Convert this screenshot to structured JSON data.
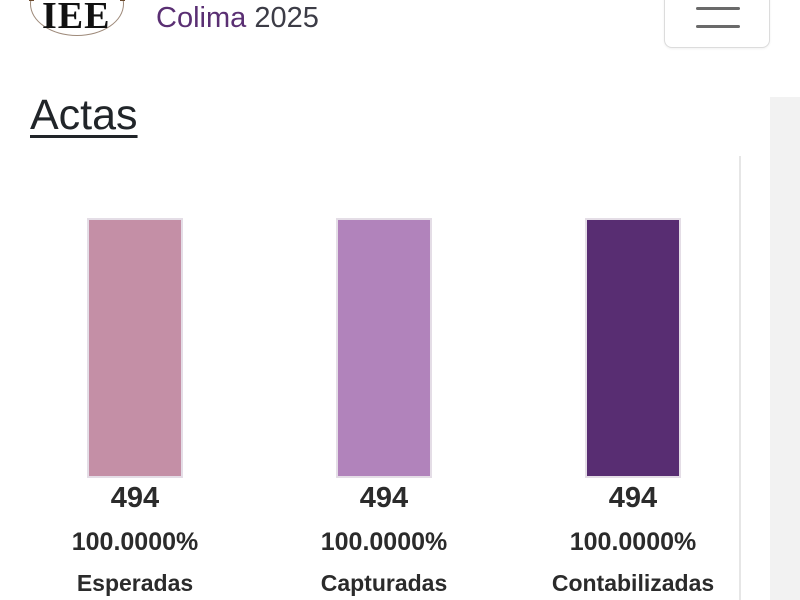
{
  "header": {
    "logo_text": "IEE",
    "brand_name": "Colima",
    "brand_year": "2025"
  },
  "section": {
    "title": "Actas"
  },
  "chart_data": {
    "type": "bar",
    "title": "",
    "max": 494,
    "categories": [
      "Esperadas",
      "Capturadas",
      "Contabilizadas"
    ],
    "bars": [
      {
        "label": "Esperadas",
        "value": 494,
        "value_text": "494",
        "percent_text": "100.0000%",
        "fill": 1.0,
        "color": "#c48fa6"
      },
      {
        "label": "Capturadas",
        "value": 494,
        "value_text": "494",
        "percent_text": "100.0000%",
        "fill": 1.0,
        "color": "#b183bb"
      },
      {
        "label": "Contabilizadas",
        "value": 494,
        "value_text": "494",
        "percent_text": "100.0000%",
        "fill": 1.0,
        "color": "#582d72"
      }
    ]
  }
}
